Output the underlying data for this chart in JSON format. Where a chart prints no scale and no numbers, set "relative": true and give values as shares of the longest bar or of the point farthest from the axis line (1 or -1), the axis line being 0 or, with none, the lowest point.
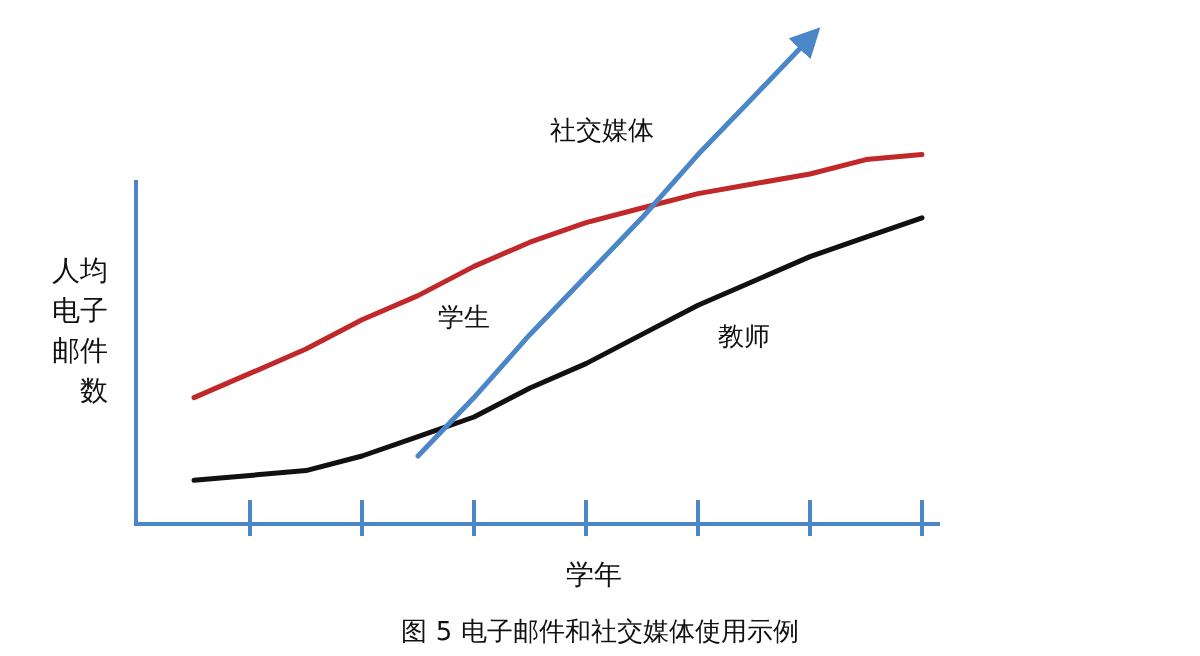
{
  "chart_data": {
    "type": "line",
    "relative": true,
    "title": "图 5 电子邮件和社交媒体使用示例",
    "xlabel": "学年",
    "ylabel": "人均电子邮件数",
    "categories": [
      null,
      null,
      null,
      null,
      null,
      null,
      null,
      null,
      null,
      null,
      null,
      null,
      null,
      null,
      null
    ],
    "series": [
      {
        "name": "学生",
        "color": "#c0282a",
        "values": [
          null,
          0.26,
          0.31,
          0.36,
          0.42,
          0.47,
          0.53,
          0.58,
          0.62,
          0.65,
          0.68,
          0.7,
          0.72,
          0.75,
          0.76
        ]
      },
      {
        "name": "教师",
        "color": "#111111",
        "values": [
          null,
          0.09,
          0.1,
          0.11,
          0.14,
          0.18,
          0.22,
          0.28,
          0.33,
          0.39,
          0.45,
          0.5,
          0.55,
          0.59,
          0.63
        ]
      },
      {
        "name": "社交媒体",
        "color": "#4a86c8",
        "values": [
          null,
          null,
          null,
          null,
          null,
          0.14,
          0.26,
          0.39,
          0.51,
          0.63,
          0.76,
          0.88,
          1.0,
          null,
          null
        ]
      }
    ],
    "legend": false,
    "grid": false,
    "marker": "none",
    "line_style": "solid"
  }
}
